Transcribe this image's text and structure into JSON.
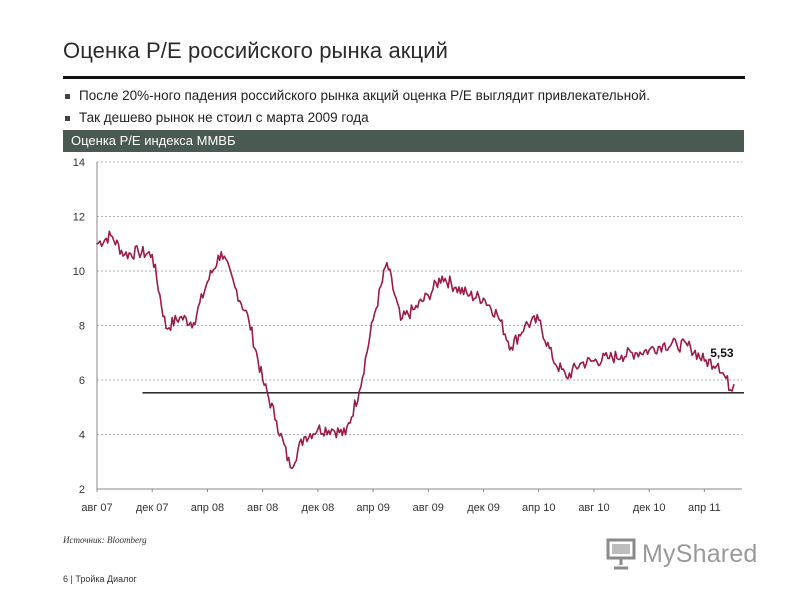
{
  "slide": {
    "title": "Оценка P/E российского рынка акций",
    "bullets": [
      "После 20%-ного падения российского рынка акций оценка P/E выглядит привлекательной.",
      "Так дешево рынок не стоил с марта 2009 года"
    ],
    "chart_header": "Оценка P/E индекса ММВБ",
    "source": "Источник: Bloomberg",
    "footer": "6  | Тройка Диалог",
    "watermark": "MyShared"
  },
  "colors": {
    "series": "#9b1b4a",
    "header_bg": "#4a5a53",
    "grid": "#999999"
  },
  "chart_data": {
    "type": "line",
    "title": "Оценка P/E индекса ММВБ",
    "xlabel": "",
    "ylabel": "",
    "ylim": [
      2,
      14
    ],
    "yticks": [
      2,
      4,
      6,
      8,
      10,
      12,
      14
    ],
    "grid": "horizontal dashed",
    "x_tick_labels": [
      "авг 07",
      "дек 07",
      "апр 08",
      "авг 08",
      "дек 08",
      "апр 09",
      "авг 09",
      "дек 09",
      "апр 10",
      "авг 10",
      "дек 10",
      "апр 11"
    ],
    "x_range": [
      "авг 07",
      "июн 11"
    ],
    "series": [
      {
        "name": "",
        "x": [
          "авг 07",
          "сен 07",
          "окт 07",
          "ноя 07",
          "дек 07",
          "янв 08",
          "фев 08",
          "мар 08",
          "апр 08",
          "май 08",
          "июн 08",
          "июл 08",
          "авг 08",
          "сен 08",
          "окт 08",
          "ноя 08",
          "дек 08",
          "янв 09",
          "фев 09",
          "мар 09",
          "апр 09",
          "май 09",
          "июн 09",
          "июл 09",
          "авг 09",
          "сен 09",
          "окт 09",
          "ноя 09",
          "дек 09",
          "янв 10",
          "фев 10",
          "мар 10",
          "апр 10",
          "май 10",
          "июн 10",
          "июл 10",
          "авг 10",
          "сен 10",
          "окт 10",
          "ноя 10",
          "дек 10",
          "янв 11",
          "фев 11",
          "мар 11",
          "апр 11",
          "май 11",
          "июн 11"
        ],
        "values": [
          11.0,
          11.3,
          10.6,
          10.7,
          10.6,
          7.9,
          8.3,
          8.1,
          9.6,
          10.7,
          9.4,
          8.2,
          6.0,
          4.5,
          2.8,
          3.9,
          4.2,
          4.2,
          4.0,
          5.6,
          8.2,
          10.3,
          8.2,
          8.6,
          9.1,
          9.8,
          9.4,
          9.1,
          9.0,
          8.4,
          7.2,
          8.0,
          8.2,
          6.8,
          6.1,
          6.6,
          6.7,
          6.8,
          6.9,
          7.0,
          7.1,
          7.3,
          7.3,
          7.2,
          6.7,
          6.6,
          5.6
        ]
      }
    ],
    "reference_line": {
      "value": 5.53
    },
    "annotations": [
      {
        "text": "5,53",
        "x": "май 11",
        "y": 5.53
      }
    ]
  }
}
